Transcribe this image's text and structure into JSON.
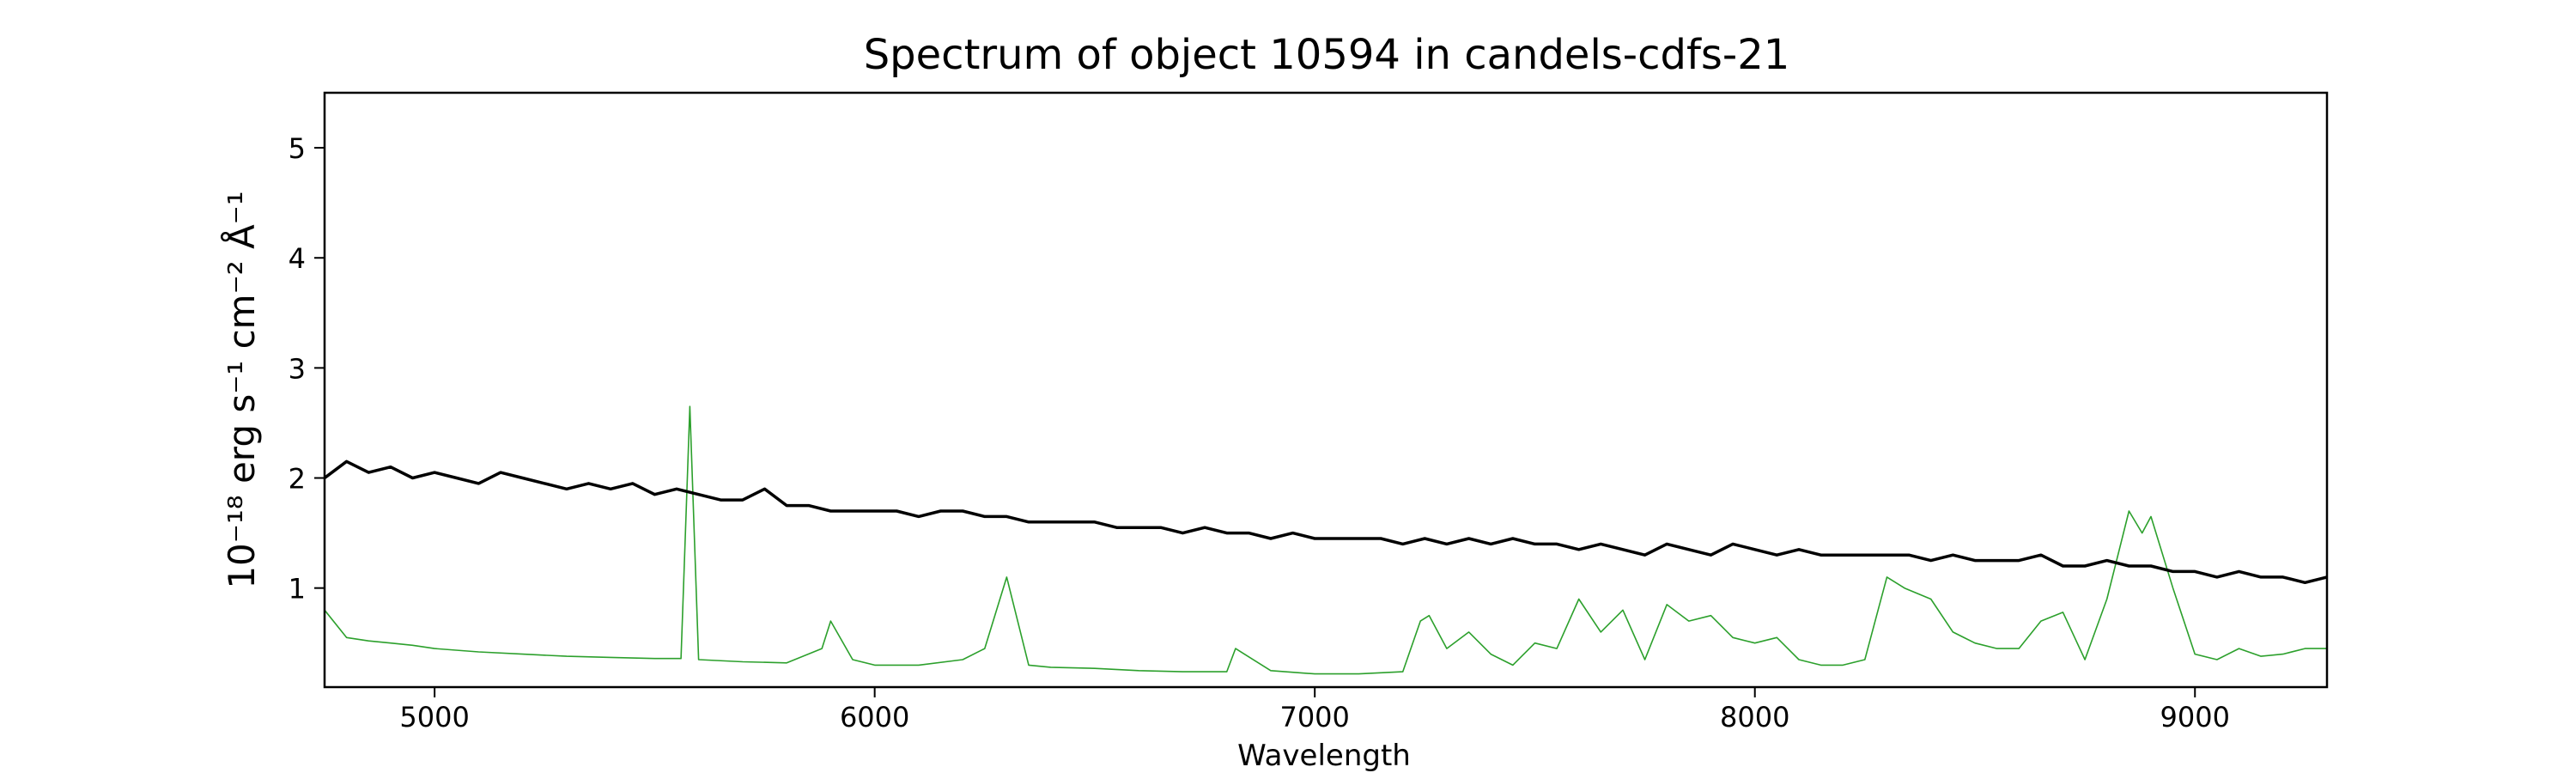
{
  "chart_data": {
    "type": "line",
    "title": "Spectrum of object 10594 in candels-cdfs-21",
    "xlabel": "Wavelength",
    "ylabel": "10⁻¹⁸ erg s⁻¹ cm⁻² Å⁻¹",
    "xlim": [
      4750,
      9300
    ],
    "ylim": [
      0.1,
      5.5
    ],
    "xticks": [
      5000,
      6000,
      7000,
      8000,
      9000
    ],
    "yticks": [
      1,
      2,
      3,
      4,
      5
    ],
    "grid": false,
    "legend": "none",
    "series": [
      {
        "color": "#000000",
        "x": [
          4750,
          4800,
          4850,
          4900,
          4950,
          5000,
          5050,
          5100,
          5150,
          5200,
          5250,
          5300,
          5350,
          5400,
          5450,
          5500,
          5550,
          5600,
          5650,
          5700,
          5750,
          5800,
          5850,
          5900,
          5950,
          6000,
          6050,
          6100,
          6150,
          6200,
          6250,
          6300,
          6350,
          6400,
          6450,
          6500,
          6550,
          6600,
          6650,
          6700,
          6750,
          6800,
          6850,
          6900,
          6950,
          7000,
          7050,
          7100,
          7150,
          7200,
          7250,
          7300,
          7350,
          7400,
          7450,
          7500,
          7550,
          7600,
          7650,
          7700,
          7750,
          7800,
          7850,
          7900,
          7950,
          8000,
          8050,
          8100,
          8150,
          8200,
          8250,
          8300,
          8350,
          8400,
          8450,
          8500,
          8550,
          8600,
          8650,
          8700,
          8750,
          8800,
          8850,
          8900,
          8950,
          9000,
          9050,
          9100,
          9150,
          9200,
          9250,
          9300
        ],
        "y": [
          2.0,
          2.15,
          2.05,
          2.1,
          2.0,
          2.05,
          2.0,
          1.95,
          2.05,
          2.0,
          1.95,
          1.9,
          1.95,
          1.9,
          1.95,
          1.85,
          1.9,
          1.85,
          1.8,
          1.8,
          1.9,
          1.75,
          1.75,
          1.7,
          1.7,
          1.7,
          1.7,
          1.65,
          1.7,
          1.7,
          1.65,
          1.65,
          1.6,
          1.6,
          1.6,
          1.6,
          1.55,
          1.55,
          1.55,
          1.5,
          1.55,
          1.5,
          1.5,
          1.45,
          1.5,
          1.45,
          1.45,
          1.45,
          1.45,
          1.4,
          1.45,
          1.4,
          1.45,
          1.4,
          1.45,
          1.4,
          1.4,
          1.35,
          1.4,
          1.35,
          1.3,
          1.4,
          1.35,
          1.3,
          1.4,
          1.35,
          1.3,
          1.35,
          1.3,
          1.3,
          1.3,
          1.3,
          1.3,
          1.25,
          1.3,
          1.25,
          1.25,
          1.25,
          1.3,
          1.2,
          1.2,
          1.25,
          1.2,
          1.2,
          1.15,
          1.15,
          1.1,
          1.15,
          1.1,
          1.1,
          1.05,
          1.1
        ]
      },
      {
        "color": "#2ca02c",
        "x": [
          4750,
          4800,
          4850,
          4900,
          4950,
          5000,
          5100,
          5200,
          5300,
          5400,
          5500,
          5560,
          5580,
          5600,
          5700,
          5800,
          5880,
          5900,
          5950,
          6000,
          6100,
          6200,
          6250,
          6300,
          6350,
          6400,
          6500,
          6600,
          6700,
          6800,
          6820,
          6900,
          7000,
          7100,
          7200,
          7240,
          7260,
          7300,
          7350,
          7400,
          7450,
          7500,
          7550,
          7600,
          7650,
          7700,
          7750,
          7800,
          7850,
          7900,
          7950,
          8000,
          8050,
          8100,
          8150,
          8200,
          8250,
          8280,
          8300,
          8340,
          8400,
          8450,
          8500,
          8550,
          8600,
          8650,
          8700,
          8750,
          8800,
          8850,
          8880,
          8900,
          8950,
          9000,
          9050,
          9100,
          9150,
          9200,
          9250,
          9300
        ],
        "y": [
          0.8,
          0.55,
          0.52,
          0.5,
          0.48,
          0.45,
          0.42,
          0.4,
          0.38,
          0.37,
          0.36,
          0.36,
          2.65,
          0.35,
          0.33,
          0.32,
          0.45,
          0.7,
          0.35,
          0.3,
          0.3,
          0.35,
          0.45,
          1.1,
          0.3,
          0.28,
          0.27,
          0.25,
          0.24,
          0.24,
          0.45,
          0.25,
          0.22,
          0.22,
          0.24,
          0.7,
          0.75,
          0.45,
          0.6,
          0.4,
          0.3,
          0.5,
          0.45,
          0.9,
          0.6,
          0.8,
          0.35,
          0.85,
          0.7,
          0.75,
          0.55,
          0.5,
          0.55,
          0.35,
          0.3,
          0.3,
          0.35,
          0.8,
          1.1,
          1.0,
          0.9,
          0.6,
          0.5,
          0.45,
          0.45,
          0.7,
          0.78,
          0.35,
          0.9,
          1.7,
          1.5,
          1.65,
          1.0,
          0.4,
          0.35,
          0.45,
          0.38,
          0.4,
          0.45,
          0.45
        ]
      }
    ]
  }
}
